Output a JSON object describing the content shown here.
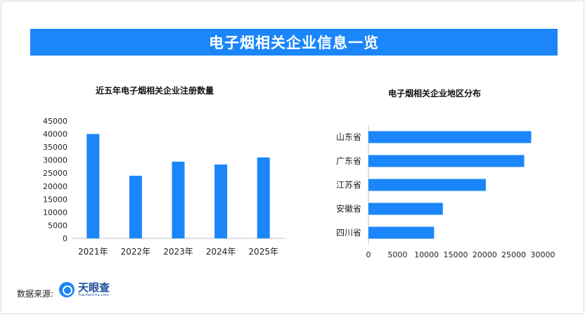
{
  "banner": {
    "title": "电子烟相关企业信息一览"
  },
  "source": {
    "label": "数据来源:",
    "logo_cn": "天眼查",
    "logo_en": "TianYanCha.com"
  },
  "colors": {
    "accent": "#1b86f9",
    "bar": "#1b86f9",
    "axis": "#bfbfbf",
    "text": "#222222"
  },
  "chart_data": [
    {
      "type": "bar",
      "title": "近五年电子烟相关企业注册数量",
      "categories": [
        "2021年",
        "2022年",
        "2023年",
        "2024年",
        "2025年"
      ],
      "values": [
        40000,
        24000,
        29400,
        28300,
        31000
      ],
      "ylim": [
        0,
        45000
      ],
      "yticks": [
        0,
        5000,
        10000,
        15000,
        20000,
        25000,
        30000,
        35000,
        40000,
        45000
      ],
      "xlabel": "",
      "ylabel": "",
      "grid": false
    },
    {
      "type": "bar",
      "orientation": "horizontal",
      "title": "电子烟相关企业地区分布",
      "categories": [
        "山东省",
        "广东省",
        "江苏省",
        "安徽省",
        "四川省"
      ],
      "values": [
        28000,
        26800,
        20200,
        12800,
        11300
      ],
      "xlim": [
        0,
        30000
      ],
      "xticks": [
        0,
        5000,
        10000,
        15000,
        20000,
        25000,
        30000
      ],
      "xlabel": "",
      "ylabel": "",
      "grid": false
    }
  ]
}
